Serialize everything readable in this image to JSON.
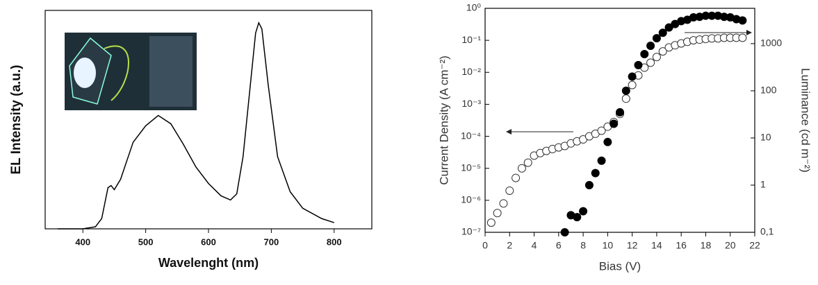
{
  "chart_data": [
    {
      "type": "line",
      "x_label": "Wavelenght (nm)",
      "y_label": "EL Intensity (a.u.)",
      "x": [
        360,
        400,
        420,
        430,
        440,
        445,
        450,
        460,
        480,
        500,
        520,
        540,
        560,
        580,
        600,
        620,
        635,
        645,
        655,
        665,
        675,
        680,
        685,
        695,
        710,
        730,
        750,
        780,
        800
      ],
      "values": [
        0,
        0,
        0.01,
        0.05,
        0.2,
        0.21,
        0.19,
        0.24,
        0.42,
        0.5,
        0.55,
        0.51,
        0.41,
        0.3,
        0.22,
        0.16,
        0.14,
        0.17,
        0.35,
        0.65,
        0.95,
        1.0,
        0.97,
        0.7,
        0.35,
        0.18,
        0.1,
        0.05,
        0.03
      ],
      "color": "#000000",
      "xlim": [
        340,
        860
      ],
      "ylim": [
        0,
        1.06
      ],
      "xticks": [
        400,
        500,
        600,
        700,
        800
      ]
    },
    {
      "type": "scatter",
      "x_label": "Bias (V)",
      "y_label": "Current Density (A cm⁻²)",
      "y2_label": "Luminance (cd m⁻²)",
      "x": [
        0.5,
        1,
        1.5,
        2,
        2.5,
        3,
        3.5,
        4,
        4.5,
        5,
        5.5,
        6,
        6.5,
        7,
        7.5,
        8,
        8.5,
        9,
        9.5,
        10,
        10.5,
        11,
        11.5,
        12,
        12.5,
        13,
        13.5,
        14,
        14.5,
        15,
        15.5,
        16,
        16.5,
        17,
        17.5,
        18,
        18.5,
        19,
        19.5,
        20,
        20.5,
        21
      ],
      "series": [
        {
          "color": "#333333",
          "marker": "open",
          "values": [
            2e-07,
            4e-07,
            8e-07,
            2e-06,
            5e-06,
            1e-05,
            1.5e-05,
            2.5e-05,
            3e-05,
            3.5e-05,
            4e-05,
            4.5e-05,
            5e-05,
            6e-05,
            7e-05,
            8e-05,
            0.0001,
            0.00012,
            0.00015,
            0.0002,
            0.00028,
            0.0005,
            0.0015,
            0.004,
            0.008,
            0.014,
            0.02,
            0.03,
            0.045,
            0.06,
            0.07,
            0.08,
            0.09,
            0.1,
            0.105,
            0.11,
            0.115,
            0.115,
            0.12,
            0.12,
            0.12,
            0.12
          ]
        },
        {
          "color": "#000000",
          "marker": "filled",
          "axis": "y2",
          "values": [
            null,
            null,
            null,
            null,
            null,
            null,
            null,
            null,
            null,
            null,
            null,
            null,
            0.1,
            0.23,
            0.21,
            0.28,
            1,
            1.8,
            3.3,
            8.2,
            20,
            35,
            100,
            200,
            350,
            600,
            900,
            1300,
            1700,
            2200,
            2600,
            3000,
            3200,
            3600,
            3700,
            3900,
            3900,
            3900,
            3700,
            3600,
            3300,
            3100
          ]
        }
      ],
      "xlim": [
        0,
        22
      ],
      "xticks": [
        0,
        2,
        4,
        6,
        8,
        10,
        12,
        14,
        16,
        18,
        20,
        22
      ],
      "ylog": true,
      "ylim": [
        1e-07,
        1
      ],
      "yticks": [
        {
          "value": 1e-07,
          "label": "10⁻⁷"
        },
        {
          "value": 1e-06,
          "label": "10⁻⁶"
        },
        {
          "value": 1e-05,
          "label": "10⁻⁵"
        },
        {
          "value": 0.0001,
          "label": "10⁻⁴"
        },
        {
          "value": 0.001,
          "label": "10⁻³"
        },
        {
          "value": 0.01,
          "label": "10⁻²"
        },
        {
          "value": 0.1,
          "label": "10⁻¹"
        },
        {
          "value": 1,
          "label": "10⁰"
        }
      ],
      "y2log": true,
      "y2lim": [
        0.1,
        5600
      ],
      "y2ticks": [
        {
          "value": 0.1,
          "label": "0,1"
        },
        1,
        10,
        100,
        1000
      ]
    }
  ]
}
